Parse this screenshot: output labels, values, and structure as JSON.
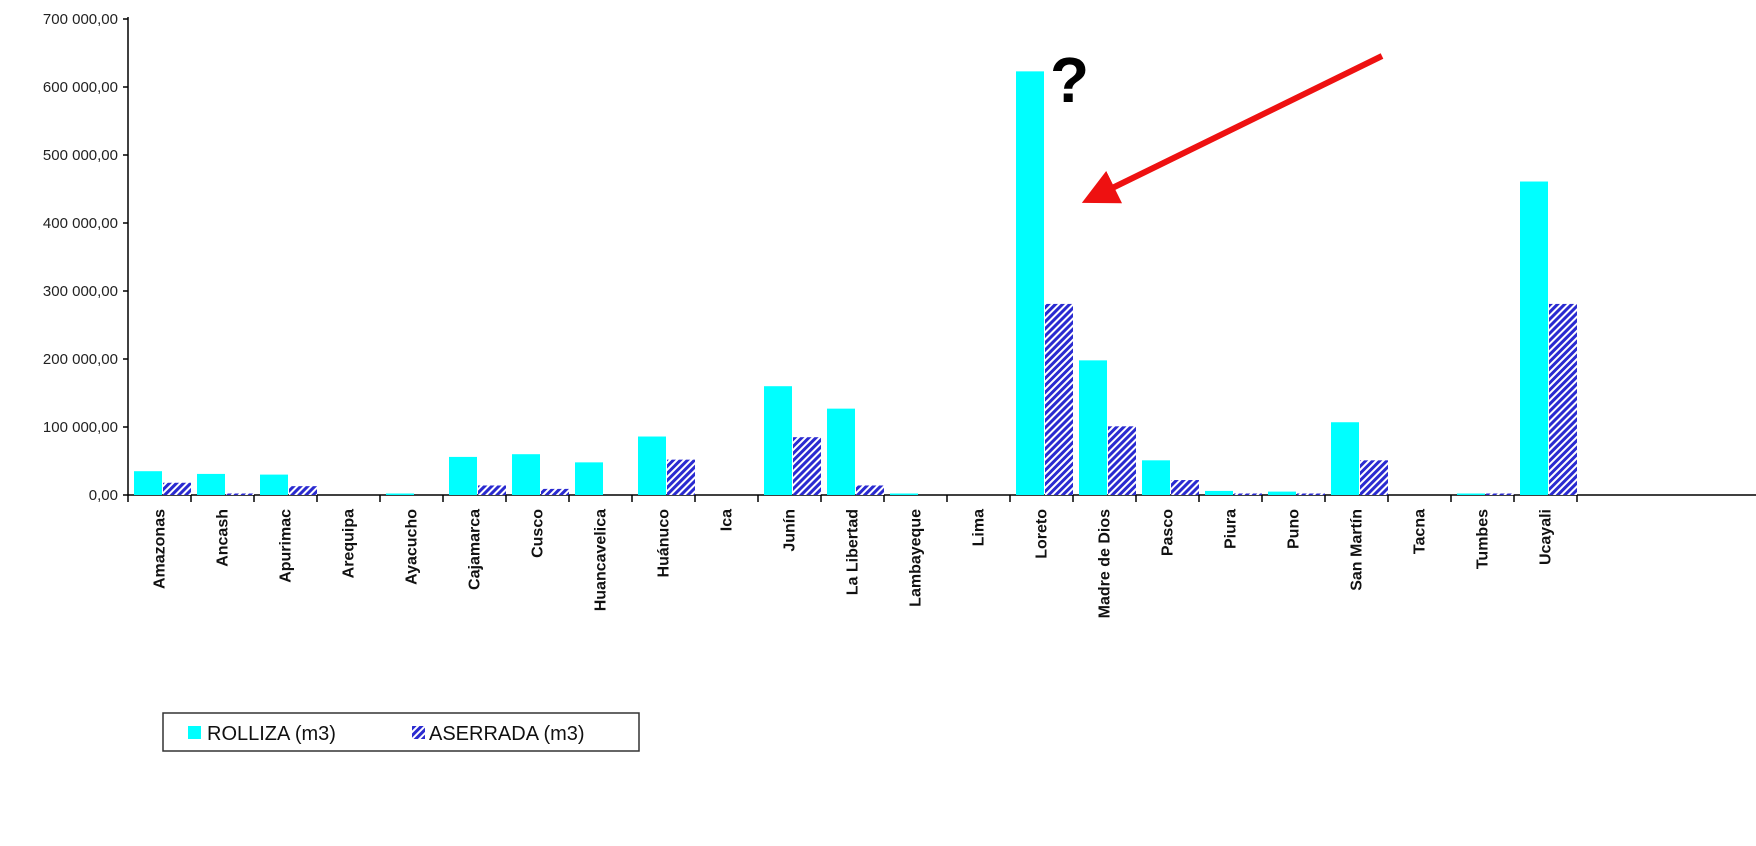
{
  "chart_data": {
    "type": "bar",
    "categories": [
      "Amazonas",
      "Ancash",
      "Apurimac",
      "Arequipa",
      "Ayacucho",
      "Cajamarca",
      "Cusco",
      "Huancavelica",
      "Huánuco",
      "Ica",
      "Junín",
      "La Libertad",
      "Lambayeque",
      "Lima",
      "Loreto",
      "Madre de Dios",
      "Pasco",
      "Piura",
      "Puno",
      "San Martín",
      "Tacna",
      "Tumbes",
      "Ucayali"
    ],
    "series": [
      {
        "name": "ROLLIZA (m3)",
        "color": "#00ffff",
        "pattern": "solid",
        "values": [
          35000,
          31000,
          30000,
          0,
          1000,
          56000,
          60000,
          48000,
          86000,
          0,
          160000,
          127000,
          1000,
          0,
          623000,
          198000,
          51000,
          6000,
          5000,
          107000,
          0,
          1000,
          461000
        ]
      },
      {
        "name": "ASERRADA (m3)",
        "color": "#3333cc",
        "pattern": "hatched",
        "values": [
          18000,
          1000,
          13000,
          0,
          0,
          14000,
          9000,
          0,
          52000,
          0,
          85000,
          14000,
          0,
          0,
          281000,
          101000,
          22000,
          1000,
          1000,
          51000,
          0,
          1000,
          281000
        ]
      }
    ],
    "yticks": [
      "0,00",
      "100 000,00",
      "200 000,00",
      "300 000,00",
      "400 000,00",
      "500 000,00",
      "600 000,00",
      "700 000,00"
    ],
    "ylim": [
      0,
      700000
    ],
    "title": "",
    "xlabel": "",
    "ylabel": "",
    "legend_position": "bottom-left",
    "grid": false
  },
  "annotations": {
    "question_mark": "?",
    "arrow_color": "#ee1111"
  }
}
